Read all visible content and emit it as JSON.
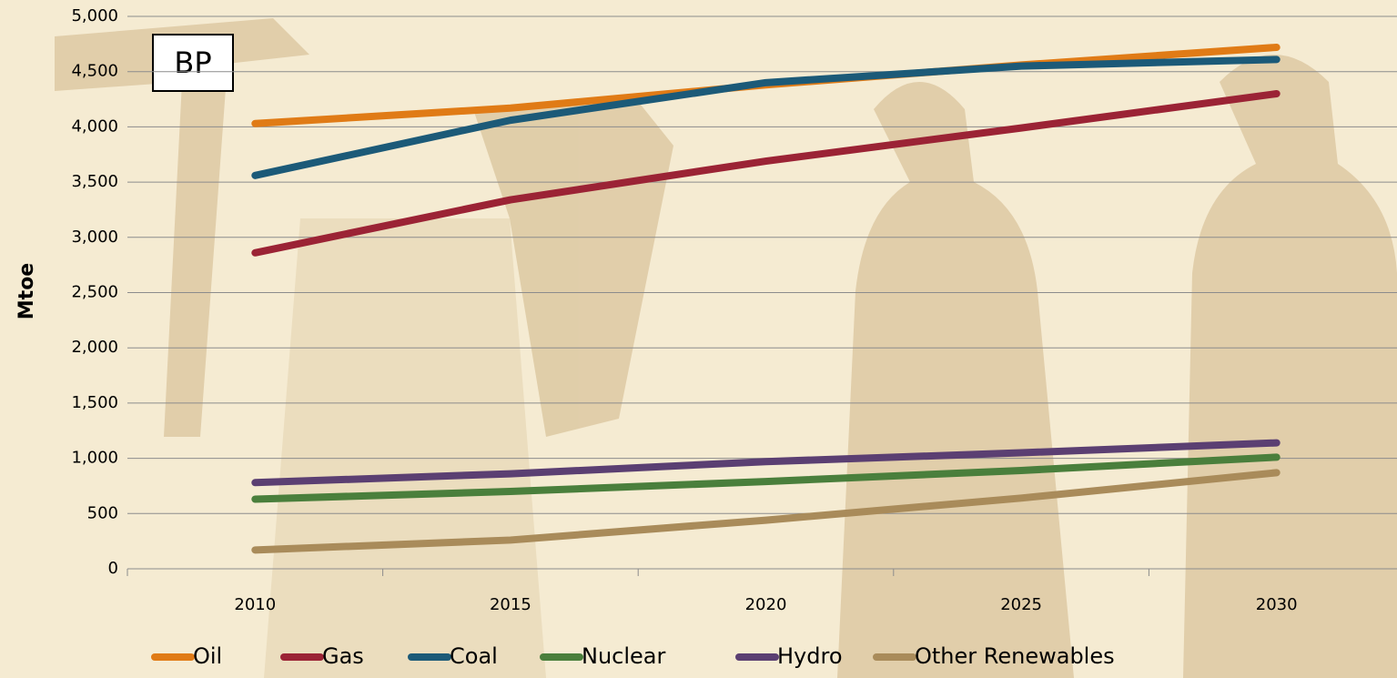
{
  "chart_data": {
    "type": "line",
    "y_label": "Mtoe",
    "annotation": "BP",
    "categories": [
      "2010",
      "2015",
      "2020",
      "2025",
      "2030"
    ],
    "series": [
      {
        "name": "Oil",
        "color": "#e07b16",
        "values": [
          4030,
          4170,
          4380,
          4560,
          4720
        ]
      },
      {
        "name": "Gas",
        "color": "#9b2335",
        "values": [
          2860,
          3340,
          3690,
          3990,
          4300
        ]
      },
      {
        "name": "Coal",
        "color": "#1c5a78",
        "values": [
          3560,
          4060,
          4400,
          4550,
          4610
        ]
      },
      {
        "name": "Nuclear",
        "color": "#4a7f3c",
        "values": [
          630,
          700,
          790,
          890,
          1010
        ]
      },
      {
        "name": "Hydro",
        "color": "#5b3f72",
        "values": [
          780,
          860,
          970,
          1050,
          1140
        ]
      },
      {
        "name": "Other Renewables",
        "color": "#a98b5a",
        "values": [
          170,
          260,
          440,
          640,
          870
        ]
      }
    ],
    "ylim": [
      0,
      5000
    ],
    "yticks": [
      0,
      500,
      {
        "value": 1000,
        "label": "1,000"
      },
      {
        "value": 1500,
        "label": "1,500"
      },
      {
        "value": 2000,
        "label": "2,000"
      },
      {
        "value": 2500,
        "label": "2,500"
      },
      {
        "value": 3000,
        "label": "3,000"
      },
      {
        "value": 3500,
        "label": "3,500"
      },
      {
        "value": 4000,
        "label": "4,000"
      },
      {
        "value": 4500,
        "label": "4,500"
      },
      {
        "value": 5000,
        "label": "5,000"
      }
    ],
    "grid": true,
    "legend": "bottom"
  }
}
